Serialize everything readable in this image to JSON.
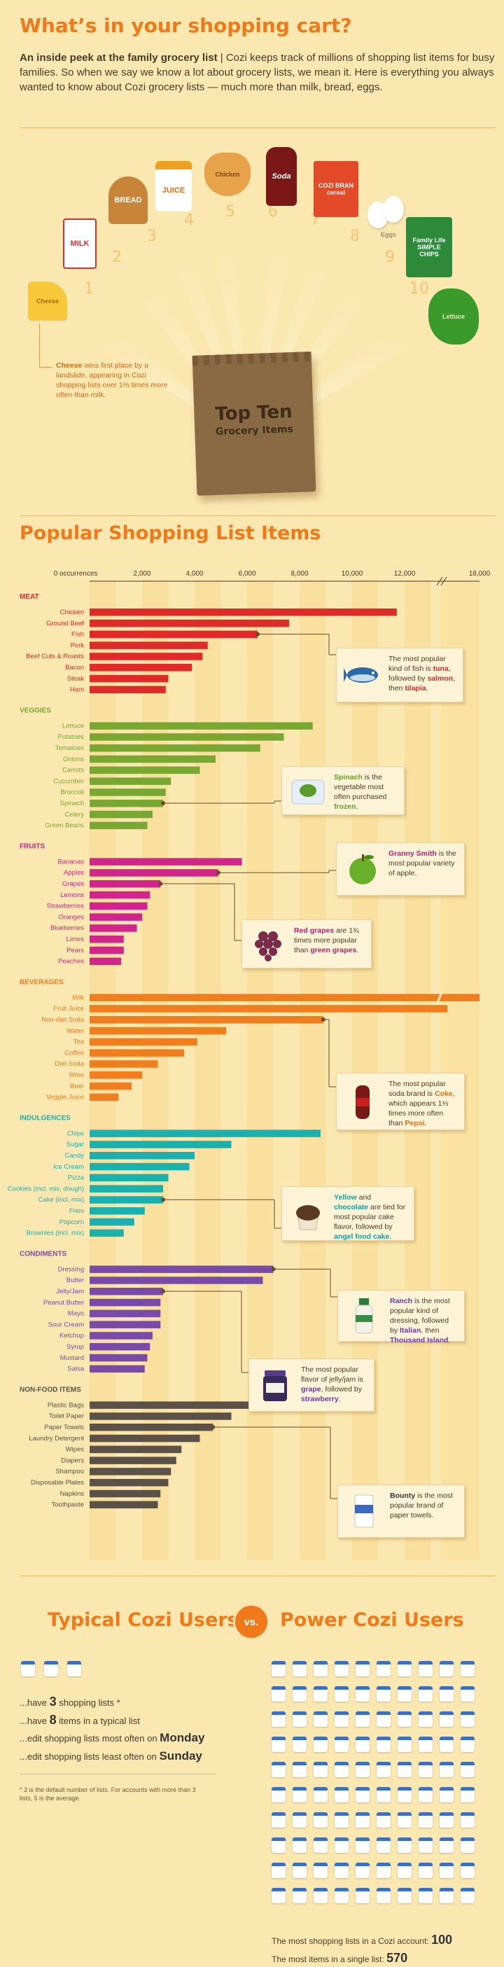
{
  "header": {
    "title": "What’s in your shopping cart?",
    "intro_bold": "An inside peek at the family grocery list",
    "intro_rest": " | Cozi keeps track of millions of shopping list items for busy families. So when we say we know a lot about grocery lists, we mean it. Here is everything you always wanted to know about Cozi grocery lists — much more than milk, bread, eggs."
  },
  "topten": {
    "bag_line1": "Top Ten",
    "bag_line2": "Grocery Items",
    "items": [
      {
        "rank": "1",
        "label": "Cheese"
      },
      {
        "rank": "2",
        "label": "MILK"
      },
      {
        "rank": "3",
        "label": "BREAD"
      },
      {
        "rank": "4",
        "label": "JUICE"
      },
      {
        "rank": "5",
        "label": "Chicken"
      },
      {
        "rank": "6",
        "label": "Soda"
      },
      {
        "rank": "7",
        "label": "COZI BRAN cereal"
      },
      {
        "rank": "8",
        "label": "Eggs"
      },
      {
        "rank": "9",
        "label": "Family Life SIMPLE CHIPS"
      },
      {
        "rank": "10",
        "label": "Lettuce"
      }
    ],
    "cheese_note_bold": "Cheese",
    "cheese_note_rest": " wins first place by a landslide, appearing in Cozi shopping lists over 1⅔ times more often than milk."
  },
  "chart_title": "Popular Shopping List Items",
  "chart_data": {
    "type": "bar",
    "orientation": "horizontal",
    "xlabel": "occurrences",
    "xlim": [
      0,
      18000
    ],
    "axis_break": [
      12000,
      18000
    ],
    "ticks": [
      "0 occurrences",
      "2,000",
      "4,000",
      "6,000",
      "8,000",
      "10,000",
      "12,000",
      "18,000"
    ],
    "groups": [
      {
        "name": "MEAT",
        "color": "#e02a2a",
        "items": [
          {
            "label": "Chicken",
            "value": 11700
          },
          {
            "label": "Ground Beef",
            "value": 7600
          },
          {
            "label": "Fish",
            "value": 6400
          },
          {
            "label": "Pork",
            "value": 4500
          },
          {
            "label": "Beef Cuts & Roasts",
            "value": 4300
          },
          {
            "label": "Bacon",
            "value": 3900
          },
          {
            "label": "Steak",
            "value": 3000
          },
          {
            "label": "Ham",
            "value": 2900
          }
        ]
      },
      {
        "name": "VEGGIES",
        "color": "#78a832",
        "items": [
          {
            "label": "Lettuce",
            "value": 8500
          },
          {
            "label": "Potatoes",
            "value": 7400
          },
          {
            "label": "Tomatoes",
            "value": 6500
          },
          {
            "label": "Onions",
            "value": 4800
          },
          {
            "label": "Carrots",
            "value": 4200
          },
          {
            "label": "Cucumber",
            "value": 3100
          },
          {
            "label": "Broccoli",
            "value": 2900
          },
          {
            "label": "Spinach",
            "value": 2800
          },
          {
            "label": "Celery",
            "value": 2400
          },
          {
            "label": "Green Beans",
            "value": 2200
          }
        ]
      },
      {
        "name": "FRUITS",
        "color": "#d0258a",
        "items": [
          {
            "label": "Bananas",
            "value": 5800
          },
          {
            "label": "Apples",
            "value": 4900
          },
          {
            "label": "Grapes",
            "value": 2700
          },
          {
            "label": "Lemons",
            "value": 2300
          },
          {
            "label": "Strawberries",
            "value": 2200
          },
          {
            "label": "Oranges",
            "value": 2000
          },
          {
            "label": "Blueberries",
            "value": 1800
          },
          {
            "label": "Limes",
            "value": 1300
          },
          {
            "label": "Pears",
            "value": 1300
          },
          {
            "label": "Peaches",
            "value": 1200
          }
        ]
      },
      {
        "name": "BEVERAGES",
        "color": "#f07d1e",
        "items": [
          {
            "label": "Milk",
            "value": 18000
          },
          {
            "label": "Fruit Juice",
            "value": 13000
          },
          {
            "label": "Non-diet Soda",
            "value": 8900
          },
          {
            "label": "Water",
            "value": 5200
          },
          {
            "label": "Tea",
            "value": 4100
          },
          {
            "label": "Coffee",
            "value": 3600
          },
          {
            "label": "Diet Soda",
            "value": 2600
          },
          {
            "label": "Wine",
            "value": 2000
          },
          {
            "label": "Beer",
            "value": 1600
          },
          {
            "label": "Veggie Juice",
            "value": 1100
          }
        ]
      },
      {
        "name": "INDULGENCES",
        "color": "#1ab0b0",
        "items": [
          {
            "label": "Chips",
            "value": 8800
          },
          {
            "label": "Sugar",
            "value": 5400
          },
          {
            "label": "Candy",
            "value": 4000
          },
          {
            "label": "Ice Cream",
            "value": 3800
          },
          {
            "label": "Pizza",
            "value": 3000
          },
          {
            "label": "Cookies (incl. mix, dough)",
            "value": 2800
          },
          {
            "label": "Cake (incl. mix)",
            "value": 2800
          },
          {
            "label": "Fries",
            "value": 2100
          },
          {
            "label": "Popcorn",
            "value": 1700
          },
          {
            "label": "Brownies (incl. mix)",
            "value": 1300
          }
        ]
      },
      {
        "name": "CONDIMENTS",
        "color": "#7a4aa8",
        "items": [
          {
            "label": "Dressing",
            "value": 7000
          },
          {
            "label": "Butter",
            "value": 6600
          },
          {
            "label": "Jelly/Jam",
            "value": 2800
          },
          {
            "label": "Peanut Butter",
            "value": 2700
          },
          {
            "label": "Mayo",
            "value": 2700
          },
          {
            "label": "Sour Cream",
            "value": 2700
          },
          {
            "label": "Ketchup",
            "value": 2400
          },
          {
            "label": "Syrup",
            "value": 2300
          },
          {
            "label": "Mustard",
            "value": 2200
          },
          {
            "label": "Salsa",
            "value": 2100
          }
        ]
      },
      {
        "name": "NON-FOOD ITEMS",
        "color": "#5a5248",
        "items": [
          {
            "label": "Plastic Bags",
            "value": 7600
          },
          {
            "label": "Toilet Paper",
            "value": 5400
          },
          {
            "label": "Paper Towels",
            "value": 4700
          },
          {
            "label": "Laundry Detergent",
            "value": 4200
          },
          {
            "label": "Wipes",
            "value": 3500
          },
          {
            "label": "Diapers",
            "value": 3300
          },
          {
            "label": "Shampoo",
            "value": 3100
          },
          {
            "label": "Disposable Plates",
            "value": 3000
          },
          {
            "label": "Napkins",
            "value": 2700
          },
          {
            "label": "Toothpaste",
            "value": 2600
          }
        ]
      }
    ]
  },
  "callouts": {
    "fish": {
      "t1": "The most popular kind of fish is ",
      "b1": "tuna",
      "t2": ", followed by ",
      "b2": "salmon",
      "t3": ", then ",
      "b3": "tilapia",
      "t4": "."
    },
    "spinach": {
      "b1": "Spinach",
      "t1": " is the vegetable most often purchased ",
      "b2": "frozen",
      "t2": "."
    },
    "apple": {
      "b1": "Granny Smith",
      "t1": " is the most popular variety of apple."
    },
    "grapes": {
      "b1": "Red grapes",
      "t1": " are 1¾ times more popular than ",
      "b2": "green grapes",
      "t2": "."
    },
    "soda": {
      "t1": "The most popular soda brand is ",
      "b1": "Coke",
      "t2": ", which appears 1⅓ times more often than ",
      "b2": "Pepsi",
      "t3": "."
    },
    "cake": {
      "b1": "Yellow",
      "t1": " and ",
      "b2": "chocolate",
      "t2": " are tied for most popular cake flavor, followed by ",
      "b3": "angel food cake",
      "t3": "."
    },
    "ranch": {
      "b1": "Ranch",
      "t1": " is the most popular kind of dressing, followed by ",
      "b2": "Italian",
      "t2": ", then ",
      "b3": "Thousand Island",
      "t3": "."
    },
    "jelly": {
      "t1": "The most popular flavor of jelly/jam is ",
      "b1": "grape",
      "t2": ", followed by ",
      "b2": "strawberry",
      "t3": "."
    },
    "bounty": {
      "b1": "Bounty",
      "t1": " is the most popular brand of paper towels."
    }
  },
  "compare": {
    "left_title": "Typical Cozi Users",
    "vs": "vs.",
    "right_title": "Power Cozi Users",
    "typical_lists": 3,
    "power_lists": 100,
    "s1_pre": "...have ",
    "s1_num": "3",
    "s1_post": " shopping lists *",
    "s2_pre": "...have ",
    "s2_num": "8",
    "s2_post": " items in a typical list",
    "s3_pre": "...edit shopping lists most often on ",
    "s3_day": "Monday",
    "s4_pre": "...edit shopping lists least often on ",
    "s4_day": "Sunday",
    "footnote": "* 3 is the default number of lists. For accounts with more than 3 lists, 5 is the average.",
    "p1_text": "The most shopping lists in a Cozi account: ",
    "p1_num": "100",
    "p2_text": "The most items in a single list: ",
    "p2_num": "570"
  }
}
